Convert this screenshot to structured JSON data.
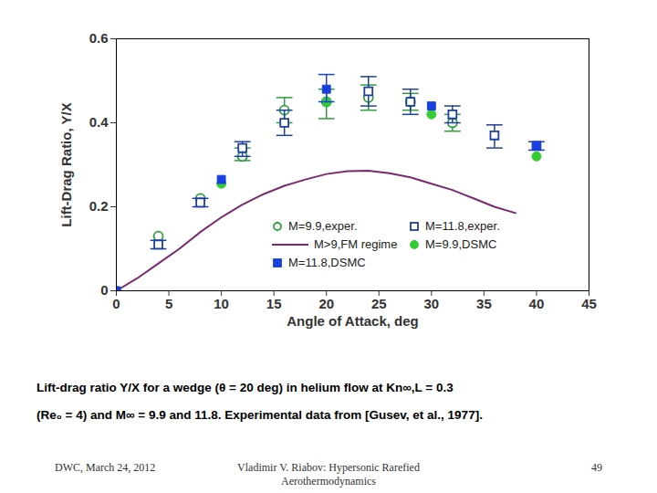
{
  "chart_data": {
    "type": "scatter",
    "x_label": "Angle of Attack, deg",
    "y_label": "Lift-Drag Ratio, Y/X",
    "xlim": [
      0,
      45
    ],
    "xticks": [
      0,
      5,
      10,
      15,
      20,
      25,
      30,
      35,
      40,
      45
    ],
    "ylim": [
      0,
      0.6
    ],
    "yticks": [
      0,
      0.2,
      0.4,
      0.6
    ],
    "grid": false,
    "legend": "inside",
    "series": [
      {
        "name": "M=9.9,exper.",
        "type": "scatter",
        "marker": "circle-open",
        "color": "#2e9e3e",
        "x": [
          4,
          8,
          12,
          16,
          20,
          24,
          28,
          32
        ],
        "values": [
          0.13,
          0.22,
          0.32,
          0.43,
          0.45,
          0.46,
          0.45,
          0.4
        ],
        "y_low": [
          null,
          null,
          0.31,
          0.4,
          0.41,
          0.43,
          0.43,
          0.38
        ],
        "y_high": [
          null,
          null,
          0.34,
          0.46,
          0.48,
          0.49,
          0.47,
          0.42
        ]
      },
      {
        "name": "M=11.8,exper.",
        "type": "scatter",
        "marker": "square-open",
        "color": "#1f3f9e",
        "x": [
          4,
          8,
          12,
          16,
          24,
          28,
          32,
          36,
          40
        ],
        "values": [
          0.11,
          0.21,
          0.34,
          0.4,
          0.475,
          0.45,
          0.42,
          0.37,
          0.345
        ],
        "y_low": [
          0.1,
          0.2,
          0.32,
          0.37,
          0.44,
          0.42,
          0.4,
          0.34,
          0.335
        ],
        "y_high": [
          0.12,
          0.22,
          0.355,
          0.43,
          0.51,
          0.48,
          0.44,
          0.395,
          0.355
        ]
      },
      {
        "name": "M>9,FM regime",
        "type": "line",
        "line_style": "solid",
        "color": "#7b2a6e",
        "x": [
          0,
          2,
          4,
          6,
          8,
          10,
          12,
          14,
          16,
          18,
          20,
          22,
          24,
          26,
          28,
          30,
          32,
          34,
          36,
          38
        ],
        "values": [
          0,
          0.03,
          0.065,
          0.1,
          0.14,
          0.175,
          0.205,
          0.23,
          0.25,
          0.265,
          0.278,
          0.285,
          0.286,
          0.28,
          0.27,
          0.255,
          0.24,
          0.22,
          0.2,
          0.185
        ]
      },
      {
        "name": "M=9.9,DSMC",
        "type": "scatter",
        "marker": "circle",
        "color": "#33cc33",
        "x": [
          0,
          10,
          20,
          30,
          40
        ],
        "values": [
          0,
          0.255,
          0.45,
          0.42,
          0.32
        ]
      },
      {
        "name": "M=11.8,DSMC",
        "type": "scatter",
        "marker": "square",
        "color": "#1a3fe0",
        "x": [
          0,
          10,
          20,
          30,
          40
        ],
        "values": [
          0,
          0.265,
          0.48,
          0.44,
          0.345
        ],
        "y_low": [
          null,
          null,
          0.45,
          null,
          null
        ],
        "y_high": [
          null,
          null,
          0.515,
          null,
          null
        ]
      }
    ]
  },
  "slide": {
    "caption": [
      "Lift-drag ratio Y/X for a wedge (θ = 20 deg) in helium flow at Kn∞,L = 0.3",
      "(Re₀ = 4) and M∞ = 9.9 and 11.8. Experimental data from [Gusev, et al., 1977]."
    ],
    "footer": {
      "left": "DWC, March 24, 2012",
      "center": "Vladimir V. Riabov: Hypersonic Rarefied Aerothermodynamics",
      "right": "49"
    }
  }
}
